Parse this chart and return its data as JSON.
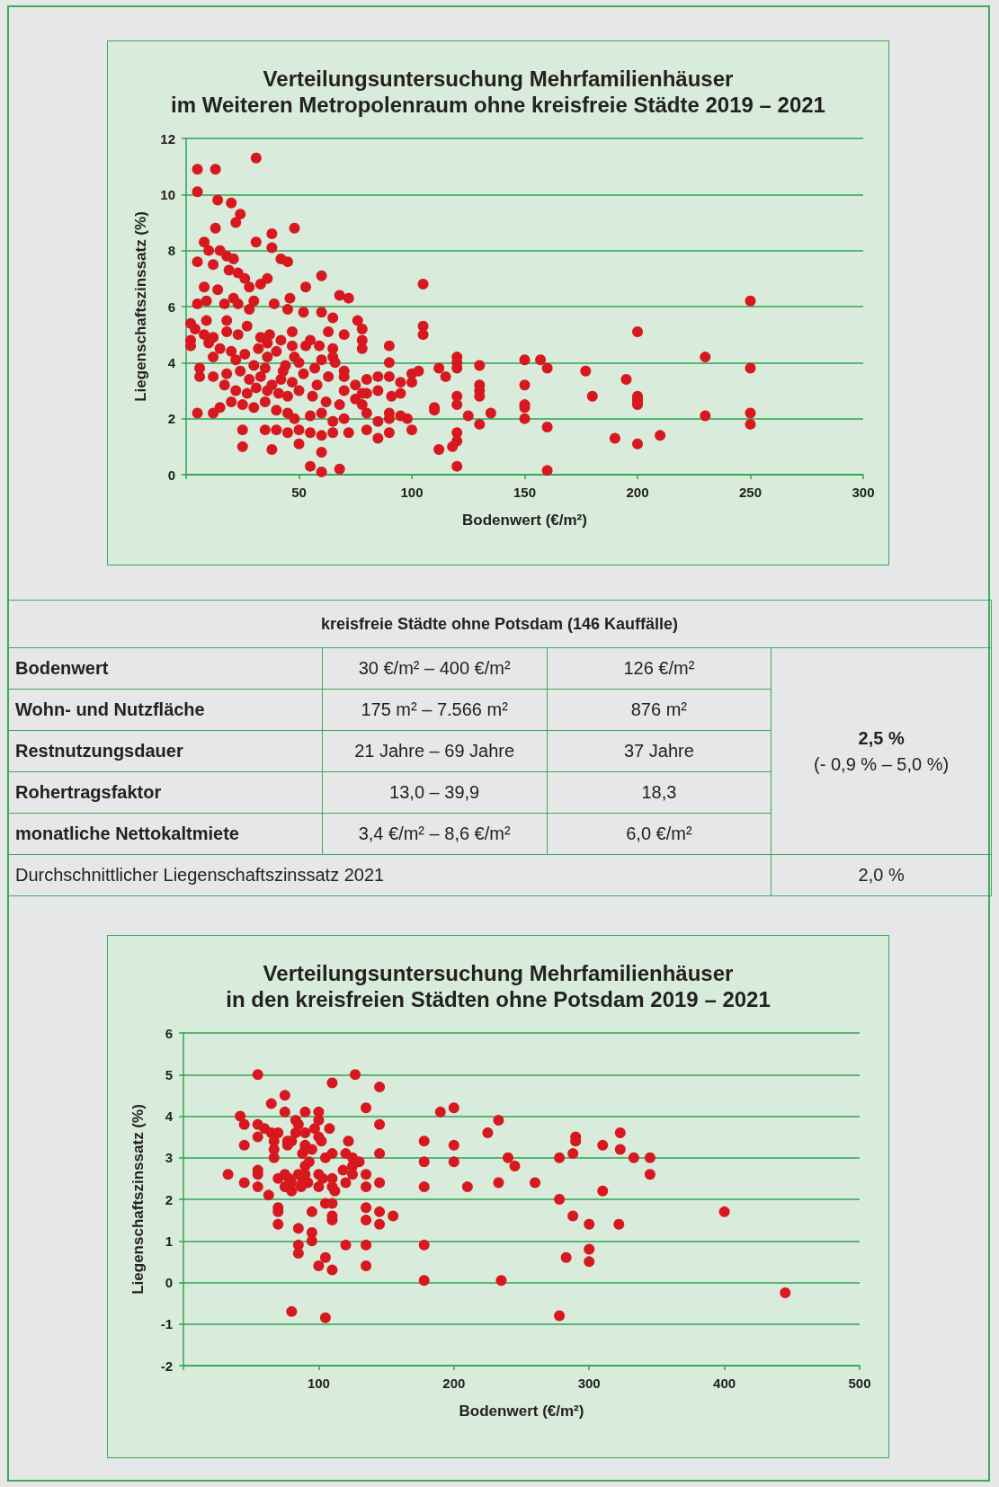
{
  "chart_data": [
    {
      "type": "scatter",
      "title": "Verteilungsuntersuchung Mehrfamilienhäuser\nim Weiteren Metropolenraum ohne kreisfreie Städte 2019 – 2021",
      "xlabel": "Bodenwert (€/m²)",
      "ylabel": "Liegenschaftszinssatz (%)",
      "xlim": [
        0,
        300
      ],
      "xticks": [
        {
          "value": 0,
          "label": null
        },
        50,
        100,
        150,
        200,
        250,
        300
      ],
      "ylim": [
        0,
        12
      ],
      "yticks": [
        0,
        2,
        4,
        6,
        8,
        10,
        12
      ],
      "grid": "y",
      "marker": "circle",
      "color": "#d7181f",
      "x": [
        5,
        13,
        31,
        5,
        14,
        20,
        24,
        22,
        13,
        38,
        48,
        31,
        8,
        10,
        15,
        18,
        21,
        38,
        42,
        45,
        5,
        12,
        19,
        23,
        26,
        36,
        33,
        60,
        105,
        8,
        14,
        21,
        28,
        46,
        53,
        72,
        68,
        250,
        5,
        9,
        17,
        30,
        39,
        45,
        52,
        60,
        65,
        76,
        78,
        105,
        105,
        200,
        2,
        4,
        8,
        12,
        18,
        23,
        27,
        33,
        37,
        42,
        47,
        55,
        59,
        63,
        70,
        78,
        90,
        2,
        10,
        15,
        20,
        26,
        32,
        36,
        40,
        48,
        53,
        65,
        78,
        2,
        12,
        22,
        30,
        35,
        44,
        50,
        57,
        65,
        70,
        90,
        112,
        120,
        120,
        120,
        130,
        150,
        157,
        160,
        177,
        230,
        250,
        6,
        12,
        18,
        24,
        28,
        33,
        38,
        42,
        47,
        52,
        58,
        63,
        70,
        80,
        90,
        95,
        100,
        100,
        115,
        130,
        195,
        6,
        17,
        22,
        27,
        31,
        36,
        41,
        45,
        50,
        56,
        62,
        68,
        75,
        80,
        85,
        91,
        95,
        110,
        120,
        120,
        130,
        130,
        150,
        150,
        150,
        180,
        200,
        200,
        200,
        200,
        5,
        12,
        15,
        20,
        25,
        30,
        35,
        40,
        45,
        48,
        55,
        60,
        65,
        70,
        80,
        85,
        90,
        98,
        110,
        125,
        130,
        135,
        150,
        160,
        230,
        250,
        250,
        40,
        45,
        50,
        55,
        60,
        65,
        72,
        80,
        85,
        90,
        100,
        112,
        120,
        120,
        118,
        190,
        200,
        210,
        25,
        25,
        35,
        38,
        50,
        60,
        55,
        60,
        68,
        120,
        160,
        103,
        85,
        90,
        95,
        78,
        78,
        70,
        47,
        66,
        75,
        60,
        43,
        36,
        28,
        18,
        23,
        9
      ],
      "values": [
        10.9,
        10.9,
        11.3,
        10.1,
        9.8,
        9.7,
        9.3,
        9.0,
        8.8,
        8.6,
        8.8,
        8.3,
        8.3,
        8.0,
        8.0,
        7.8,
        7.7,
        8.1,
        7.7,
        7.6,
        7.6,
        7.5,
        7.3,
        7.2,
        7.0,
        7.0,
        6.8,
        7.1,
        6.8,
        6.7,
        6.6,
        6.3,
        6.7,
        6.3,
        6.7,
        6.3,
        6.4,
        6.2,
        6.1,
        6.2,
        6.1,
        6.2,
        6.1,
        5.9,
        5.8,
        5.8,
        5.6,
        5.5,
        5.2,
        5.3,
        5.0,
        5.1,
        5.4,
        5.2,
        5.0,
        4.9,
        5.1,
        5.0,
        5.3,
        4.9,
        5.0,
        4.8,
        5.1,
        4.8,
        4.6,
        5.1,
        5.0,
        4.8,
        4.6,
        4.8,
        4.7,
        4.5,
        4.4,
        4.3,
        4.5,
        4.2,
        4.4,
        4.2,
        4.6,
        4.5,
        4.5,
        4.6,
        4.2,
        4.1,
        3.9,
        3.8,
        3.9,
        4.0,
        3.8,
        4.2,
        3.7,
        4.0,
        3.8,
        4.2,
        4.0,
        3.8,
        3.9,
        4.1,
        4.1,
        3.8,
        3.7,
        4.2,
        3.8,
        3.8,
        3.5,
        3.6,
        3.7,
        3.4,
        3.5,
        3.2,
        3.4,
        3.3,
        3.6,
        3.2,
        3.5,
        3.0,
        3.4,
        3.5,
        3.3,
        3.6,
        3.3,
        3.5,
        3.2,
        3.4,
        3.5,
        3.2,
        3.0,
        2.9,
        3.1,
        3.0,
        2.9,
        2.8,
        3.0,
        2.8,
        2.6,
        2.5,
        2.7,
        2.9,
        3.0,
        2.8,
        2.9,
        2.3,
        2.8,
        2.5,
        2.8,
        3.0,
        3.2,
        2.5,
        2.4,
        2.8,
        2.8,
        2.7,
        2.6,
        2.5,
        2.2,
        2.2,
        2.4,
        2.6,
        2.5,
        2.4,
        2.6,
        2.3,
        2.2,
        2.0,
        2.1,
        2.2,
        1.9,
        2.0,
        2.2,
        1.9,
        2.0,
        2.0,
        2.4,
        2.1,
        1.8,
        2.2,
        2.0,
        1.7,
        2.1,
        2.2,
        1.8,
        1.6,
        1.5,
        1.6,
        1.5,
        1.4,
        1.5,
        1.5,
        1.6,
        1.3,
        1.5,
        1.6,
        0.9,
        1.2,
        1.5,
        1.0,
        1.3,
        1.1,
        1.4,
        1.0,
        1.6,
        1.6,
        0.9,
        1.1,
        0.8,
        0.3,
        0.1,
        0.2,
        0.3,
        0.15,
        3.7,
        3.5,
        2.2,
        2.1,
        2.9,
        2.5,
        3.5,
        4.6,
        4.0,
        3.2,
        4.1,
        3.7,
        4.7,
        5.9,
        5.5,
        6.1,
        5.5
      ]
    },
    {
      "type": "other",
      "title": "kreisfreie Städte ohne Potsdam (146 Kauffälle)",
      "annotations": [
        "Bodenwert",
        "30 €/m² – 400 €/m²",
        "126 €/m²",
        "Wohn- und Nutzfläche",
        "175 m² – 7.566 m²",
        "876 m²",
        "Restnutzungsdauer",
        "21 Jahre – 69 Jahre",
        "37 Jahre",
        "Rohertragsfaktor",
        "13,0 – 39,9",
        "18,3",
        "monatliche Nettokaltmiete",
        "3,4 €/m² – 8,6 €/m²",
        "6,0 €/m²",
        "2,5 %",
        "(- 0,9 % – 5,0 %)",
        "Durchschnittlicher Liegenschaftszinssatz 2021",
        "2,0 %"
      ]
    },
    {
      "type": "scatter",
      "title": "Verteilungsuntersuchung Mehrfamilienhäuser\nin den kreisfreien Städten ohne Potsdam 2019 – 2021",
      "xlabel": "Bodenwert (€/m²)",
      "ylabel": "Liegenschaftszinssatz (%)",
      "xlim": [
        0,
        500
      ],
      "xticks": [
        {
          "value": 0,
          "label": null
        },
        100,
        200,
        300,
        400,
        500
      ],
      "ylim": [
        -2,
        6
      ],
      "yticks": [
        -2,
        -1,
        0,
        1,
        2,
        3,
        4,
        5,
        6
      ],
      "grid": "y",
      "marker": "circle",
      "color": "#d7181f",
      "x": [
        33,
        42,
        45,
        45,
        45,
        55,
        55,
        55,
        55,
        55,
        55,
        60,
        65,
        65,
        67,
        67,
        67,
        70,
        70,
        70,
        70,
        70,
        75,
        75,
        75,
        75,
        77,
        77,
        78,
        80,
        80,
        80,
        80,
        83,
        83,
        85,
        85,
        85,
        85,
        85,
        88,
        88,
        90,
        90,
        90,
        90,
        90,
        90,
        92,
        95,
        95,
        95,
        95,
        100,
        100,
        100,
        100,
        100,
        100,
        102,
        103,
        105,
        105,
        105,
        105,
        108,
        110,
        110,
        110,
        110,
        110,
        110,
        110,
        110,
        112,
        120,
        120,
        122,
        125,
        125,
        127,
        130,
        135,
        135,
        135,
        135,
        135,
        135,
        135,
        145,
        145,
        145,
        145,
        145,
        145,
        155,
        178,
        178,
        178,
        178,
        178,
        190,
        200,
        200,
        200,
        210,
        225,
        233,
        233,
        235,
        240,
        245,
        260,
        278,
        278,
        278,
        283,
        290,
        290,
        288,
        288,
        300,
        300,
        300,
        310,
        310,
        323,
        323,
        322,
        333,
        345,
        345,
        400,
        445,
        118,
        93,
        63,
        87,
        97,
        125,
        120
      ],
      "values": [
        2.6,
        4.0,
        3.8,
        3.3,
        2.4,
        3.8,
        3.5,
        2.7,
        2.6,
        2.3,
        5.0,
        3.7,
        4.3,
        3.6,
        3.4,
        3.2,
        3.0,
        3.6,
        2.5,
        1.8,
        1.7,
        1.4,
        2.6,
        2.3,
        4.1,
        4.5,
        3.4,
        3.3,
        2.5,
        3.4,
        -0.7,
        2.4,
        2.2,
        3.9,
        3.6,
        3.8,
        2.6,
        0.9,
        0.7,
        1.3,
        3.1,
        2.4,
        4.1,
        3.6,
        3.3,
        3.2,
        2.8,
        2.6,
        2.4,
        3.2,
        1.2,
        1.0,
        1.7,
        2.6,
        3.9,
        4.1,
        3.5,
        2.3,
        0.4,
        3.4,
        2.5,
        3.0,
        -0.85,
        0.6,
        1.9,
        3.7,
        4.8,
        3.1,
        2.5,
        2.3,
        1.9,
        1.6,
        1.5,
        0.3,
        2.2,
        2.4,
        0.9,
        3.4,
        3.0,
        2.8,
        5.0,
        2.9,
        4.2,
        2.6,
        2.3,
        1.8,
        1.5,
        0.4,
        0.9,
        4.7,
        3.8,
        3.1,
        2.4,
        1.7,
        1.4,
        1.6,
        3.4,
        2.9,
        2.3,
        0.9,
        0.05,
        4.1,
        4.2,
        3.3,
        2.9,
        2.3,
        3.6,
        3.9,
        2.4,
        0.05,
        3.0,
        2.8,
        2.4,
        3.0,
        2.0,
        -0.8,
        0.6,
        3.5,
        3.4,
        3.1,
        1.6,
        1.4,
        0.8,
        0.5,
        3.3,
        2.2,
        3.6,
        3.2,
        1.4,
        3.0,
        3.0,
        2.6,
        1.7,
        -0.25,
        2.7,
        2.9,
        2.1,
        2.3,
        3.7,
        2.6,
        3.1
      ]
    }
  ]
}
